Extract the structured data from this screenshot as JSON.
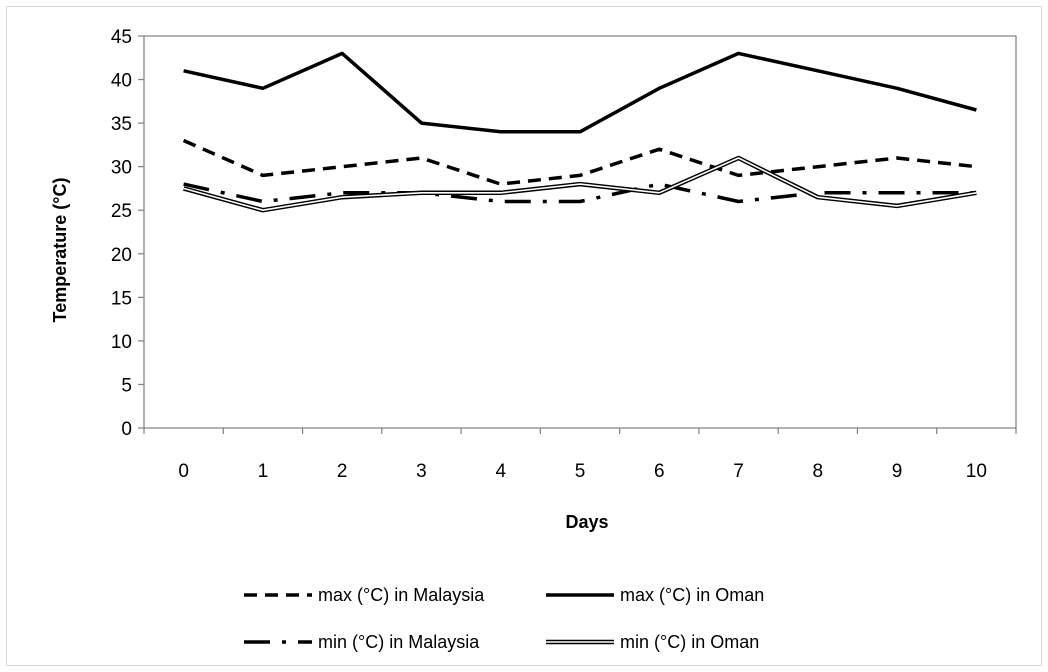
{
  "chart_data": {
    "type": "line",
    "title": "",
    "xlabel": "Days",
    "ylabel": "Temperature (°C)",
    "x": [
      0,
      1,
      2,
      3,
      4,
      5,
      6,
      7,
      8,
      9,
      10
    ],
    "ylim": [
      0,
      45
    ],
    "yticks": [
      0,
      5,
      10,
      15,
      20,
      25,
      30,
      35,
      40,
      45
    ],
    "grid": false,
    "legend_position": "bottom",
    "series": [
      {
        "name": "max (°C) in Malaysia",
        "style": "dashed",
        "color": "#000000",
        "values": [
          33,
          29,
          30,
          31,
          28,
          29,
          32,
          29,
          30,
          31,
          30
        ]
      },
      {
        "name": "max (°C) in Oman",
        "style": "solid",
        "color": "#000000",
        "values": [
          41,
          39,
          43,
          35,
          34,
          34,
          39,
          43,
          41,
          39,
          36.5
        ]
      },
      {
        "name": "min (°C) in Malaysia",
        "style": "dash-dot",
        "color": "#000000",
        "values": [
          28,
          26,
          27,
          27,
          26,
          26,
          28,
          26,
          27,
          27,
          27
        ]
      },
      {
        "name": "min (°C) in Oman",
        "style": "double",
        "color": "#000000",
        "values": [
          27.5,
          25,
          26.5,
          27,
          27,
          28,
          27,
          31,
          26.5,
          25.5,
          27
        ]
      }
    ]
  }
}
